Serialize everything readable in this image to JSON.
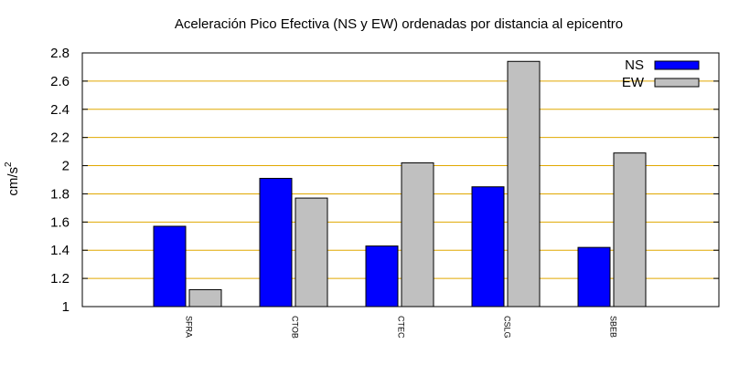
{
  "chart_data": {
    "type": "bar",
    "title": "Aceleración Pico Efectiva (NS y EW) ordenadas por distancia al epicentro",
    "ylabel": "cm/s",
    "ylabel_exponent": "2",
    "xlabel": "",
    "ylim": [
      1,
      2.8
    ],
    "yticks": [
      "1",
      "1.2",
      "1.4",
      "1.6",
      "1.8",
      "2",
      "2.2",
      "2.4",
      "2.6",
      "2.8"
    ],
    "categories": [
      "SFRA",
      "CTOB",
      "CTEC",
      "CSLG",
      "SBEB"
    ],
    "series": [
      {
        "name": "NS",
        "values": [
          1.57,
          1.91,
          1.43,
          1.85,
          1.42
        ]
      },
      {
        "name": "EW",
        "values": [
          1.12,
          1.77,
          2.02,
          2.74,
          2.09
        ]
      }
    ],
    "grid": true,
    "legend_position": "top-right"
  },
  "colors": {
    "ns": "#0000ff",
    "ew": "#c0c0c0",
    "grid": "#e0a800",
    "axis": "#000000"
  }
}
